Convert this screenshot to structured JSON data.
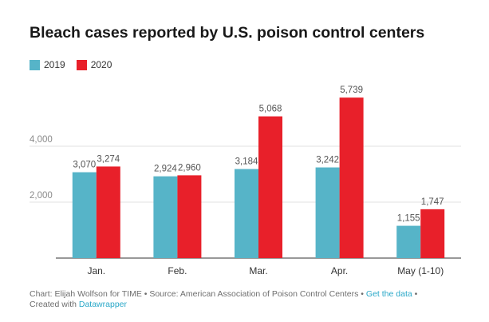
{
  "title": "Bleach cases reported by U.S. poison control centers",
  "legend": [
    {
      "label": "2019",
      "color": "#56b4c8"
    },
    {
      "label": "2020",
      "color": "#e8202a"
    }
  ],
  "footer": {
    "line1_prefix": "Chart: Elijah Wolfson for TIME • Source: American Association of Poison Control Centers • ",
    "get_data": "Get the data",
    "line1_suffix": " •",
    "line2_prefix": "Created with ",
    "datawrapper": "Datawrapper"
  },
  "chart_data": {
    "type": "bar",
    "title": "Bleach cases reported by U.S. poison control centers",
    "categories": [
      "Jan.",
      "Feb.",
      "Mar.",
      "Apr.",
      "May (1-10)"
    ],
    "series": [
      {
        "name": "2019",
        "color": "#56b4c8",
        "values": [
          3070,
          2924,
          3184,
          3242,
          1155
        ],
        "labels": [
          "3,070",
          "2,924",
          "3,184",
          "3,242",
          "1,155"
        ]
      },
      {
        "name": "2020",
        "color": "#e8202a",
        "values": [
          3274,
          2960,
          5068,
          5739,
          1747
        ],
        "labels": [
          "3,274",
          "2,960",
          "5,068",
          "5,739",
          "1,747"
        ]
      }
    ],
    "yticks": [
      2000,
      4000
    ],
    "ytick_labels": [
      "2,000",
      "4,000"
    ],
    "ylim": [
      0,
      6000
    ],
    "grid": true,
    "legend_position": "top-left"
  }
}
